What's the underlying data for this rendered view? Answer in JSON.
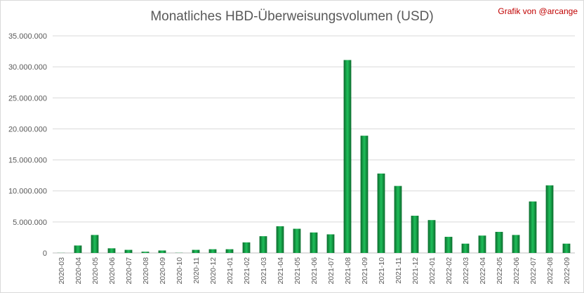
{
  "chart_data": {
    "type": "bar",
    "title": "Monatliches HBD-Überweisungsvolumen (USD)",
    "credit": "Grafik von @arcange",
    "xlabel": "",
    "ylabel": "",
    "ylim": [
      0,
      35000000
    ],
    "yticks": [
      0,
      5000000,
      10000000,
      15000000,
      20000000,
      25000000,
      30000000,
      35000000
    ],
    "ytick_labels": [
      "0",
      "5.000.000",
      "10.000.000",
      "15.000.000",
      "20.000.000",
      "25.000.000",
      "30.000.000",
      "35.000.000"
    ],
    "grid": true,
    "legend": "none",
    "bar_color_dark": "#0a6b2c",
    "bar_color_light": "#1fbf5a",
    "categories": [
      "2020-03",
      "2020-04",
      "2020-05",
      "2020-06",
      "2020-07",
      "2020-08",
      "2020-09",
      "2020-10",
      "2020-11",
      "2020-12",
      "2021-01",
      "2021-02",
      "2021-03",
      "2021-04",
      "2021-05",
      "2021-06",
      "2021-07",
      "2021-08",
      "2021-09",
      "2021-10",
      "2021-11",
      "2021-12",
      "2022-01",
      "2022-02",
      "2022-03",
      "2022-04",
      "2022-05",
      "2022-06",
      "2022-07",
      "2022-08",
      "2022-09"
    ],
    "values": [
      20000,
      1200000,
      2900000,
      750000,
      500000,
      200000,
      400000,
      30000,
      500000,
      600000,
      600000,
      1700000,
      2700000,
      4300000,
      3900000,
      3300000,
      3000000,
      31100000,
      18900000,
      12800000,
      10800000,
      6000000,
      5300000,
      2600000,
      1500000,
      2800000,
      3400000,
      2900000,
      8300000,
      10900000,
      1500000
    ]
  }
}
